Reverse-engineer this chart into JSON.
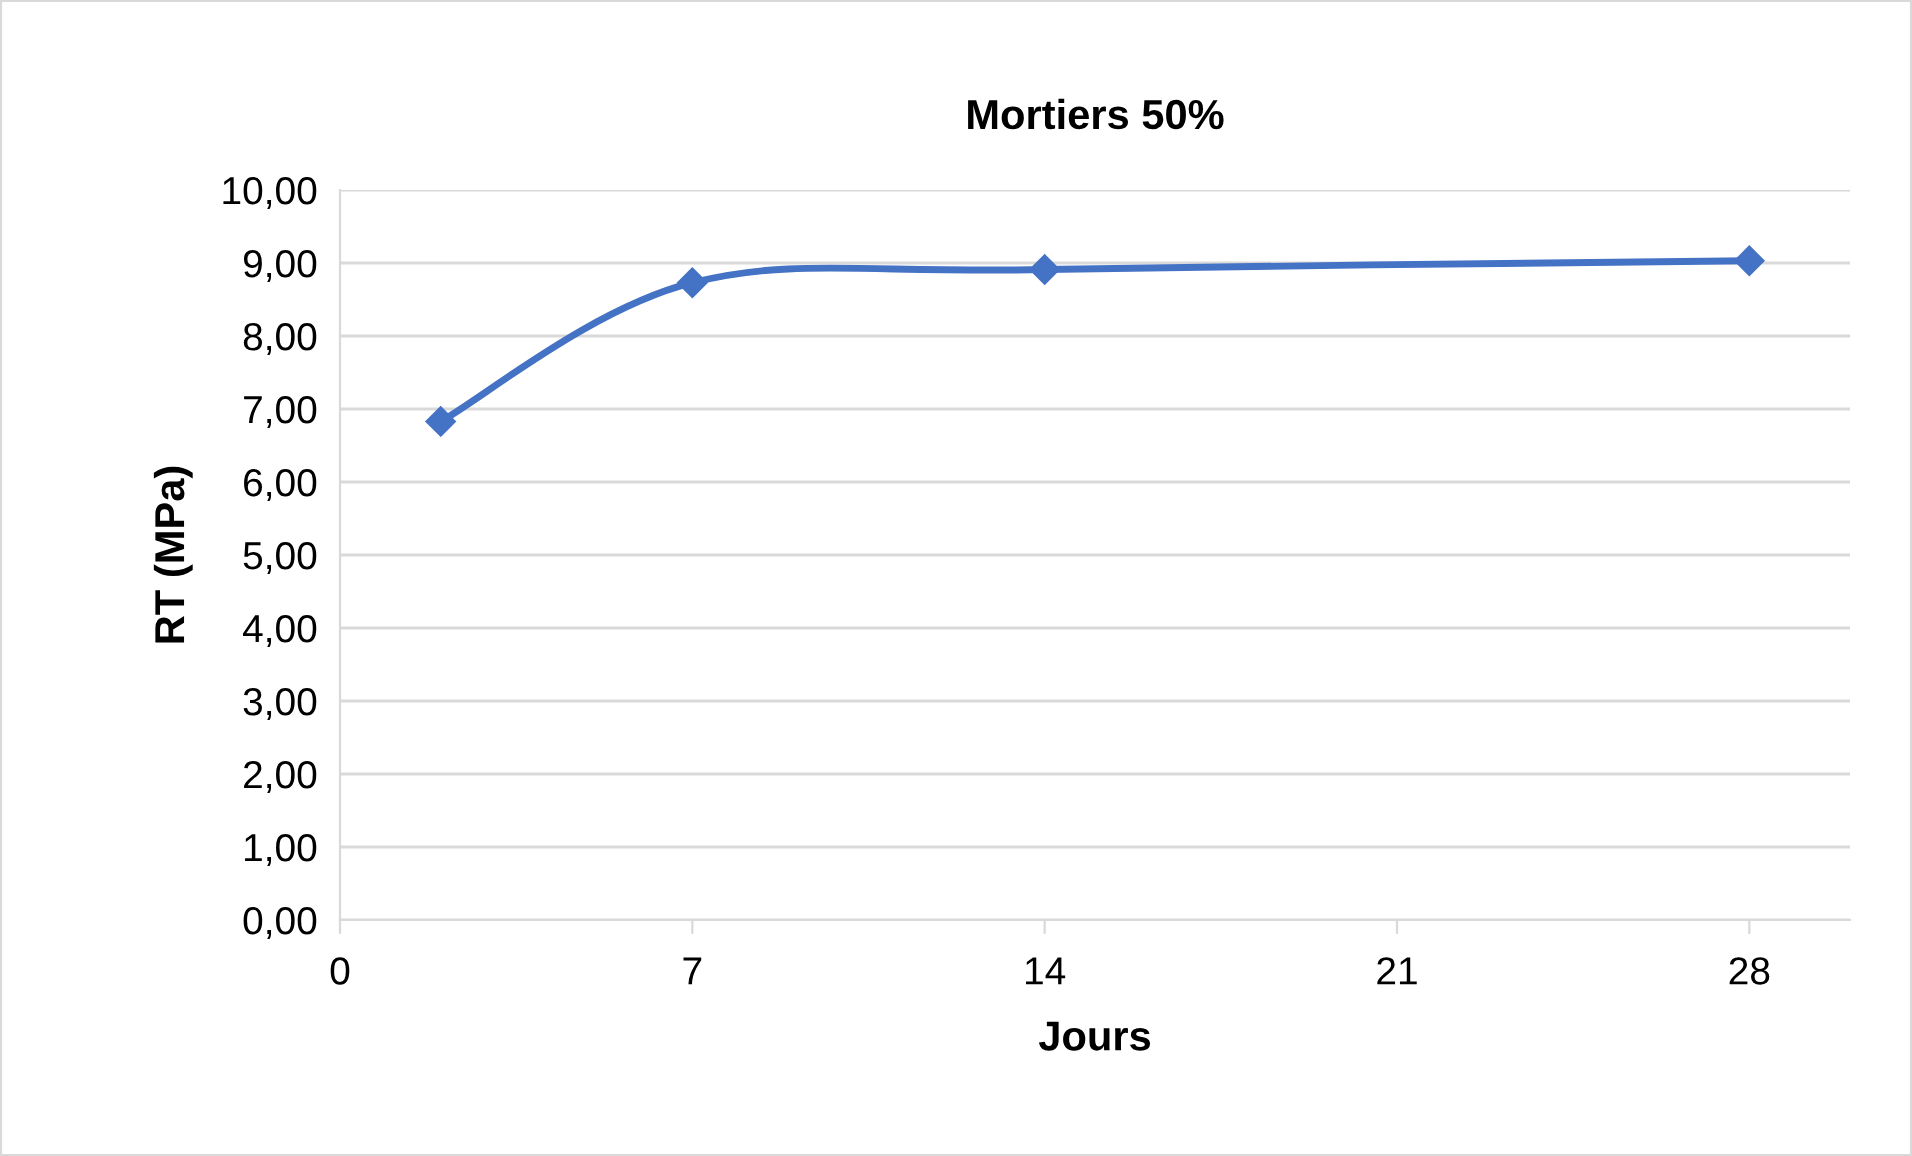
{
  "chart_data": {
    "type": "line",
    "title": "Mortiers 50%",
    "xlabel": "Jours",
    "ylabel": "RT (MPa)",
    "series": [
      {
        "color": "#4472c4",
        "x": [
          2,
          7,
          14,
          28
        ],
        "values": [
          6.83,
          8.73,
          8.91,
          9.03
        ]
      }
    ],
    "xlim": [
      0,
      30
    ],
    "xticks": [
      0,
      7,
      14,
      21,
      28
    ],
    "ylim": [
      0,
      10
    ],
    "yticks": [
      {
        "value": 0,
        "label": "0,00"
      },
      {
        "value": 1,
        "label": "1,00"
      },
      {
        "value": 2,
        "label": "2,00"
      },
      {
        "value": 3,
        "label": "3,00"
      },
      {
        "value": 4,
        "label": "4,00"
      },
      {
        "value": 5,
        "label": "5,00"
      },
      {
        "value": 6,
        "label": "6,00"
      },
      {
        "value": 7,
        "label": "7,00"
      },
      {
        "value": 8,
        "label": "8,00"
      },
      {
        "value": 9,
        "label": "9,00"
      },
      {
        "value": 10,
        "label": "10,00"
      }
    ],
    "grid": "y",
    "marker": "diamond",
    "line_style": "solid",
    "legend": false
  }
}
